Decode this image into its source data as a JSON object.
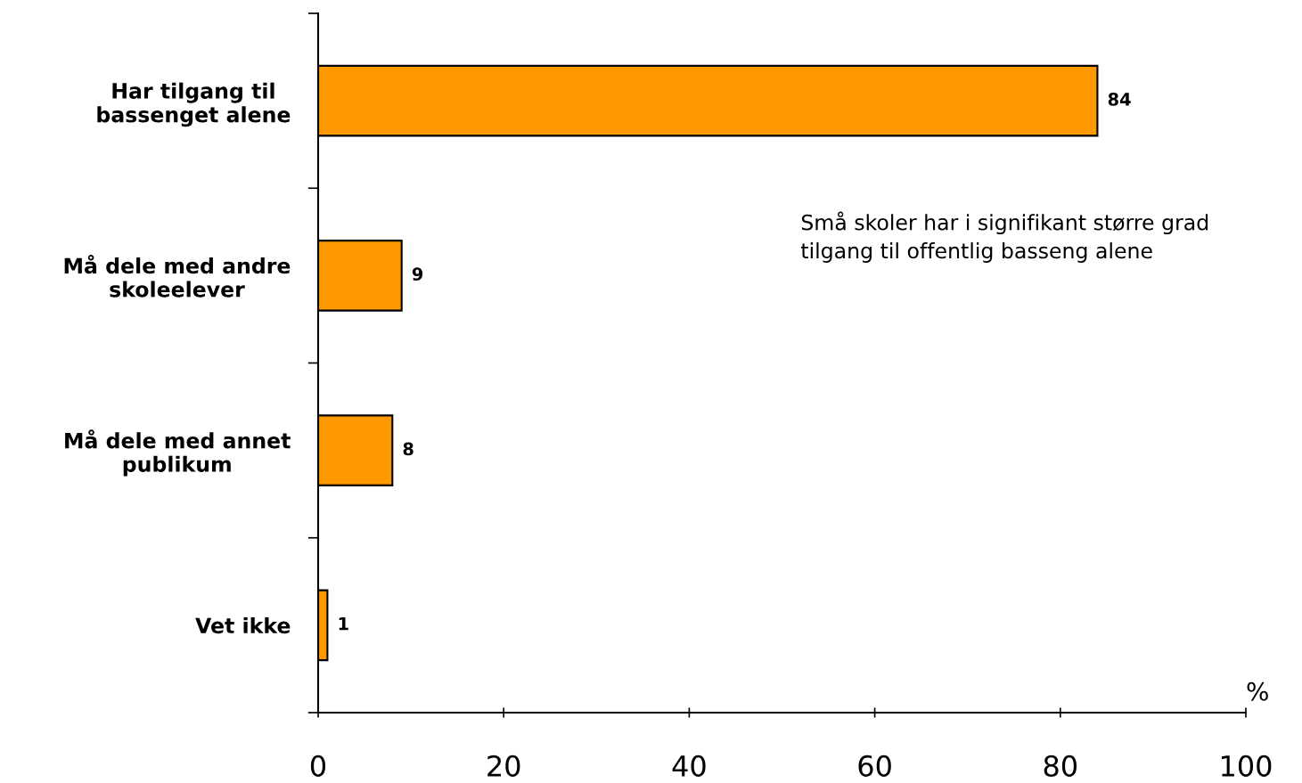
{
  "chart_data": {
    "type": "bar",
    "orientation": "horizontal",
    "categories": [
      "Har tilgang til\nbassenget alene",
      "Må dele med andre\nskoleelever",
      "Må dele med annet\npublikum",
      "Vet ikke"
    ],
    "values": [
      84,
      9,
      8,
      1
    ],
    "color": "#ff9900",
    "data_labels": true,
    "xlabel": "%",
    "xlim": [
      0,
      100
    ],
    "xticks": [
      0,
      20,
      40,
      60,
      80,
      100
    ],
    "grid": false,
    "annotations": [
      "Små skoler har i signifikant større grad\ntilgang til offentlig basseng alene"
    ]
  }
}
